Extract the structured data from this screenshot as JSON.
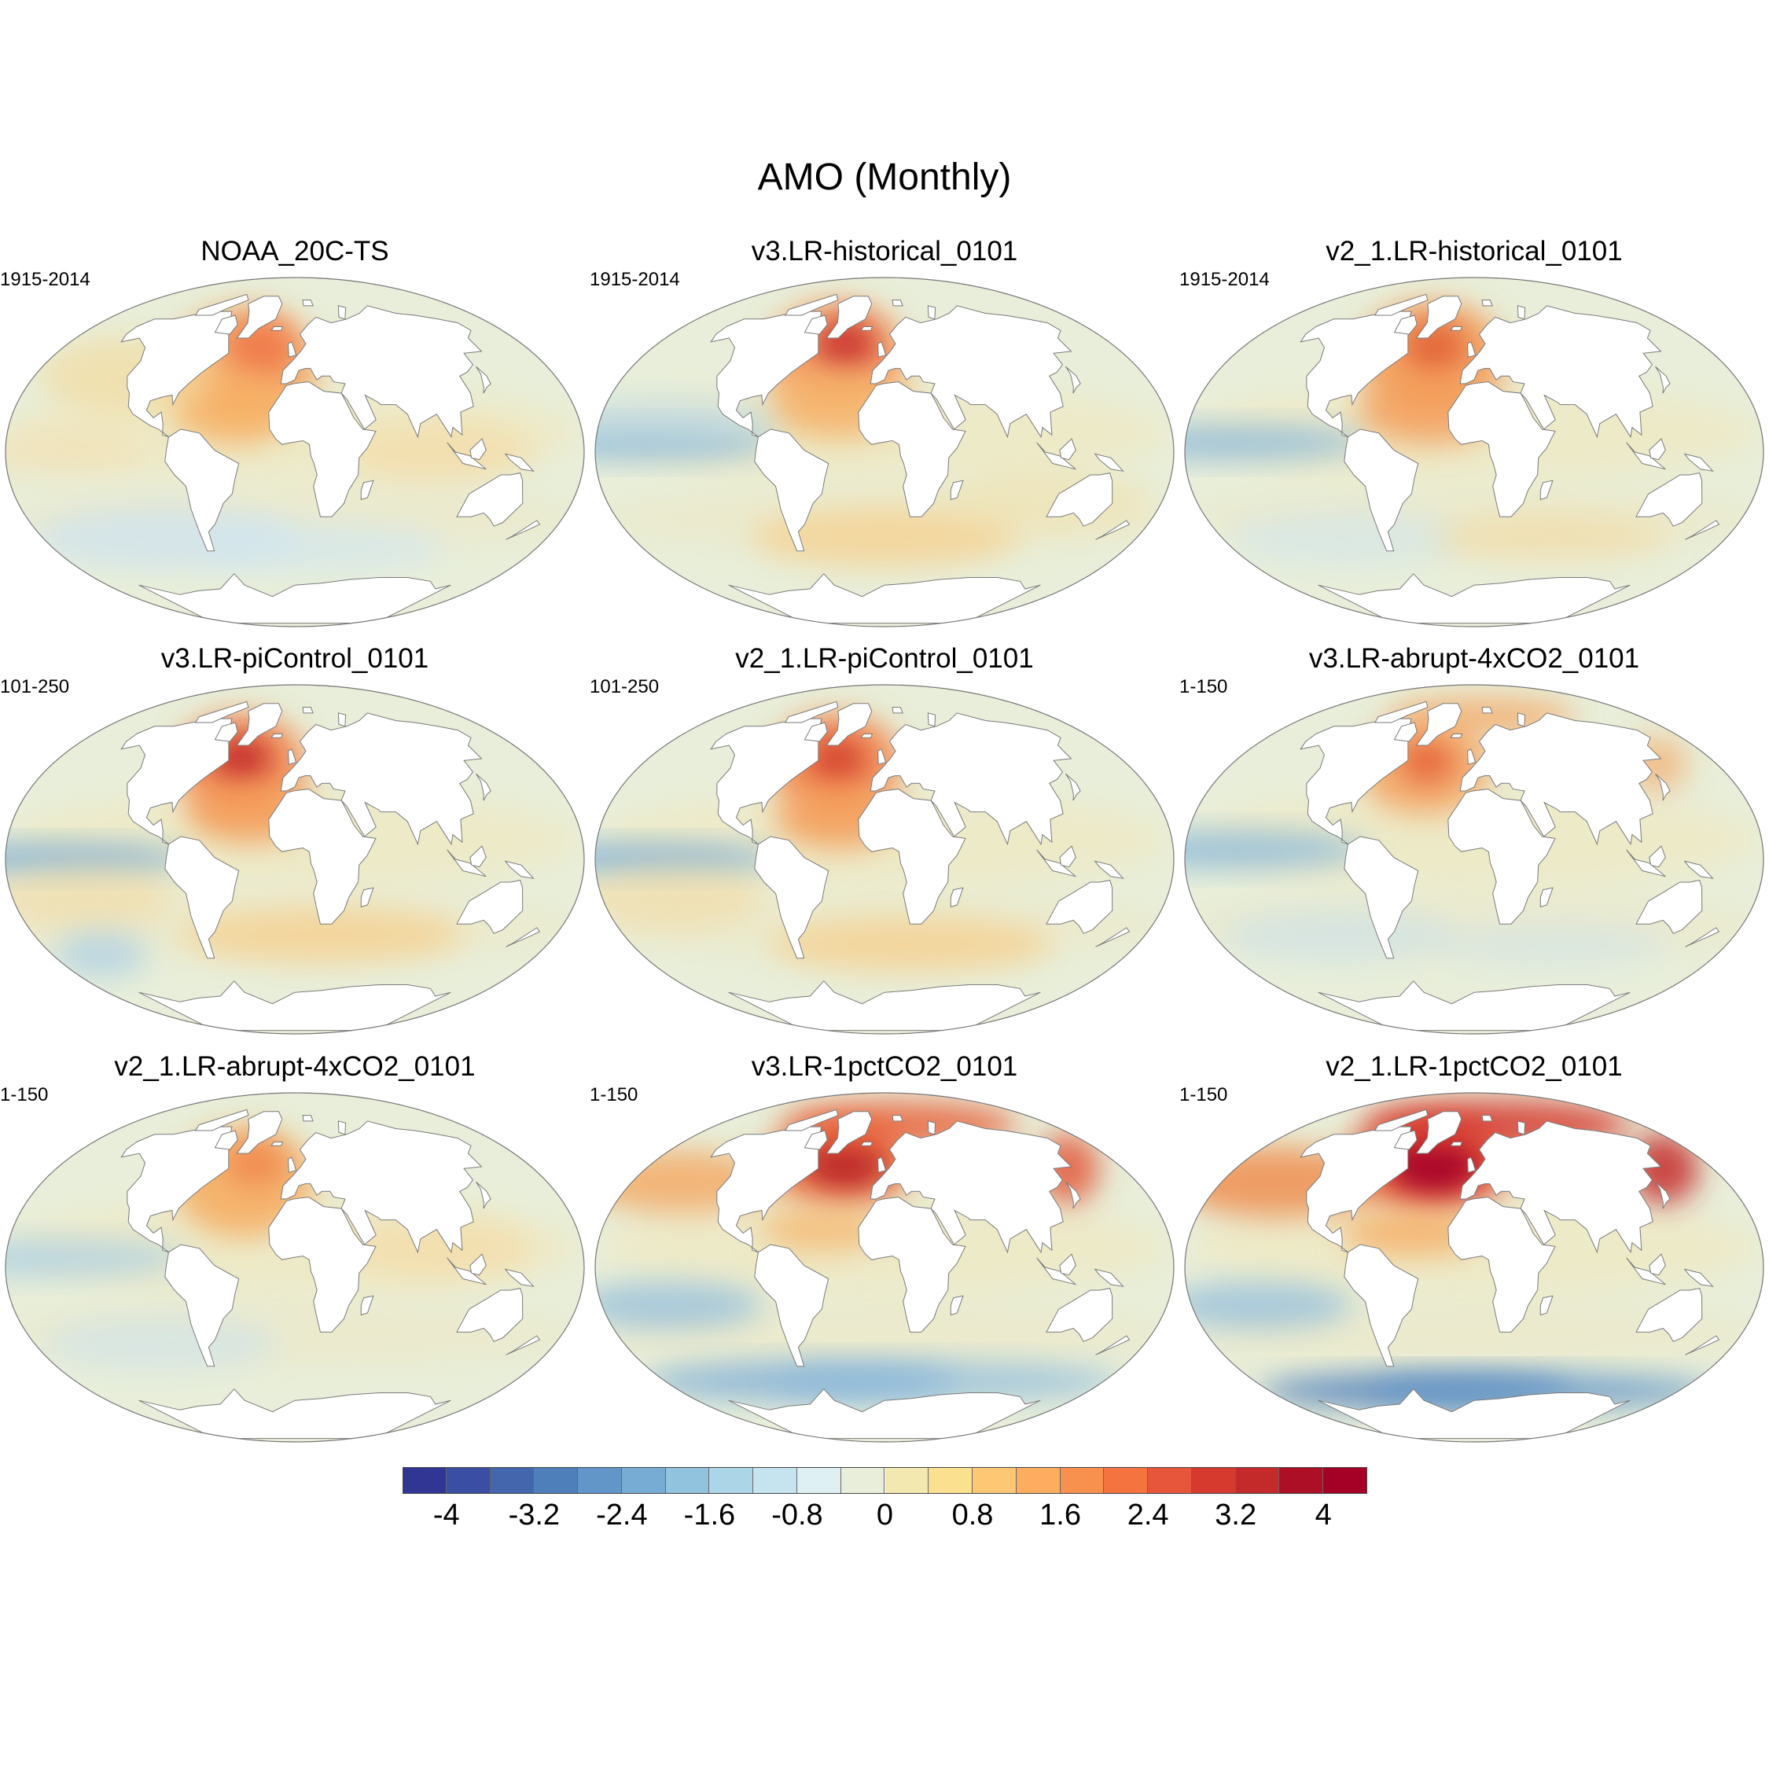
{
  "title": "AMO (Monthly)",
  "panels": [
    {
      "title": "NOAA_20C-TS",
      "period": "1915-2014",
      "variant": "obs"
    },
    {
      "title": "v3.LR-historical_0101",
      "period": "1915-2014",
      "variant": "hist_v3"
    },
    {
      "title": "v2_1.LR-historical_0101",
      "period": "1915-2014",
      "variant": "hist_v2"
    },
    {
      "title": "v3.LR-piControl_0101",
      "period": "101-250",
      "variant": "pi_v3"
    },
    {
      "title": "v2_1.LR-piControl_0101",
      "period": "101-250",
      "variant": "pi_v2"
    },
    {
      "title": "v3.LR-abrupt-4xCO2_0101",
      "period": "1-150",
      "variant": "abrupt_v3"
    },
    {
      "title": "v2_1.LR-abrupt-4xCO2_0101",
      "period": "1-150",
      "variant": "abrupt_v2"
    },
    {
      "title": "v3.LR-1pctCO2_0101",
      "period": "1-150",
      "variant": "pct_v3"
    },
    {
      "title": "v2_1.LR-1pctCO2_0101",
      "period": "1-150",
      "variant": "pct_v2"
    }
  ],
  "colorbar": {
    "levels": [
      -4.4,
      -4,
      -3.6,
      -3.2,
      -2.8,
      -2.4,
      -2,
      -1.6,
      -1.2,
      -0.8,
      -0.4,
      0,
      0.4,
      0.8,
      1.2,
      1.6,
      2,
      2.4,
      2.8,
      3.2,
      3.6,
      4,
      4.4
    ],
    "colors": [
      "#313695",
      "#3a4fa3",
      "#4366ad",
      "#4f7fbb",
      "#6296c8",
      "#77acd4",
      "#92c3de",
      "#acd6e8",
      "#c6e4ef",
      "#dff0f4",
      "#e8eed9",
      "#f2e8b0",
      "#fbe08f",
      "#fdc774",
      "#fdac60",
      "#f8914d",
      "#f4733f",
      "#e7553a",
      "#d63a2f",
      "#c52a2b",
      "#ad0f26",
      "#a50026"
    ],
    "tick_labels": [
      "-4",
      "-3.2",
      "-2.4",
      "-1.6",
      "-0.8",
      "0",
      "0.8",
      "1.6",
      "2.4",
      "3.2",
      "4"
    ],
    "tick_values": [
      -4,
      -3.2,
      -2.4,
      -1.6,
      -0.8,
      0,
      0.8,
      1.6,
      2.4,
      3.2,
      4
    ]
  }
}
